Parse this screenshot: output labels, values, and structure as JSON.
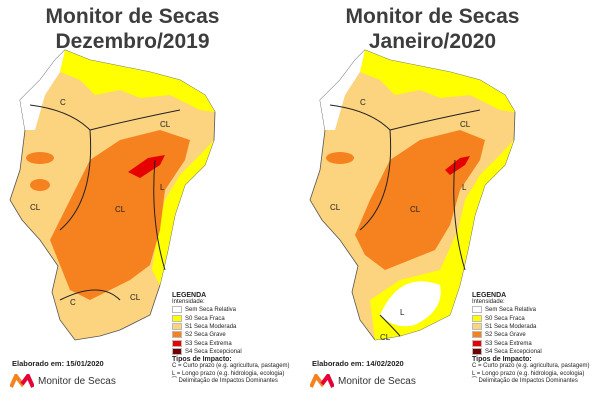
{
  "panels": [
    {
      "title": "Monitor de Secas",
      "subtitle": "Dezembro/2019",
      "elaborated": "Elaborado em: 15/01/2020"
    },
    {
      "title": "Monitor de Secas",
      "subtitle": "Janeiro/2020",
      "elaborated": "Elaborado em: 14/02/2020"
    }
  ],
  "legend": {
    "title": "LEGENDA",
    "intensity_label": "Intensidade:",
    "items": [
      {
        "label": "Sem Seca Relativa",
        "color": "#ffffff"
      },
      {
        "label": "S0 Seca Fraca",
        "color": "#ffff00"
      },
      {
        "label": "S1 Seca Moderada",
        "color": "#fcd37f"
      },
      {
        "label": "S2 Seca Grave",
        "color": "#f5821f"
      },
      {
        "label": "S3 Seca Extrema",
        "color": "#e60000"
      },
      {
        "label": "S4 Seca Excepcional",
        "color": "#730000"
      }
    ],
    "impact_title": "Tipos de Impacto:",
    "impact_short": "C = Curto prazo (e.g. agricultura, pastagem)",
    "impact_long": "L = Longo prazo (e.g. hidrologia, ecologia)",
    "impact_line": "Delimitação de Impactos Dominantes"
  },
  "map_labels": {
    "c": "C",
    "cl": "CL",
    "l": "L"
  },
  "logo_text": "Monitor de Secas"
}
